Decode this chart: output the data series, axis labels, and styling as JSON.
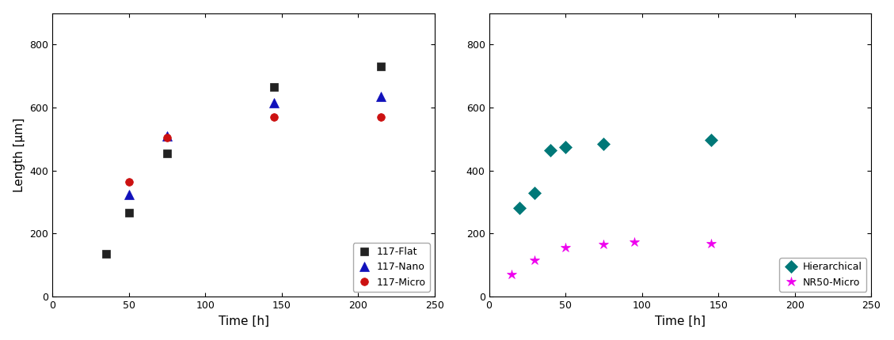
{
  "left_panel": {
    "flat": {
      "x": [
        35,
        50,
        75,
        145,
        215
      ],
      "y": [
        135,
        265,
        455,
        665,
        730
      ],
      "color": "#222222",
      "marker": "s",
      "label": "117-Flat",
      "line_color": "#aaaaaa"
    },
    "nano": {
      "x": [
        50,
        75,
        145,
        215
      ],
      "y": [
        325,
        510,
        615,
        635
      ],
      "color": "#1111bb",
      "marker": "^",
      "label": "117-Nano",
      "line_color": "#9999dd"
    },
    "micro": {
      "x": [
        50,
        75,
        145,
        215
      ],
      "y": [
        365,
        505,
        570,
        570
      ],
      "color": "#cc1111",
      "marker": "o",
      "label": "117-Micro",
      "line_color": "#dd9999"
    },
    "xlabel": "Time [h]",
    "ylabel": "Length [µm]",
    "xlim": [
      0,
      250
    ],
    "ylim": [
      0,
      900
    ],
    "yticks": [
      0,
      200,
      400,
      600,
      800
    ],
    "xticks": [
      0,
      50,
      100,
      150,
      200,
      250
    ]
  },
  "right_panel": {
    "hierarchical": {
      "x": [
        20,
        30,
        40,
        50,
        75,
        145
      ],
      "y": [
        280,
        330,
        465,
        475,
        485,
        497
      ],
      "color": "#007878",
      "marker": "D",
      "label": "Hierarchical",
      "line_color": "#88cccc"
    },
    "nr50micro": {
      "x": [
        15,
        30,
        50,
        75,
        95,
        145
      ],
      "y": [
        70,
        115,
        155,
        165,
        172,
        168
      ],
      "color": "#ee00ee",
      "marker": "*",
      "label": "NR50-Micro",
      "line_color": "#ee99ee"
    },
    "xlabel": "Time [h]",
    "ylabel": "",
    "xlim": [
      0,
      250
    ],
    "ylim": [
      0,
      900
    ],
    "yticks": [
      0,
      200,
      400,
      600,
      800
    ],
    "xticks": [
      0,
      50,
      100,
      150,
      200,
      250
    ]
  },
  "fig_background": "#ffffff"
}
